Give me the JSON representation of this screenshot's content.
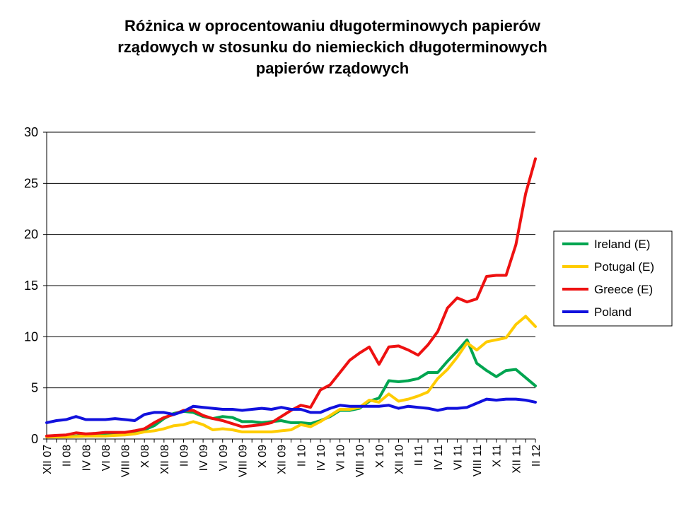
{
  "chart_data": {
    "type": "line",
    "title_lines": [
      "Różnica w oprocentowaniu długoterminowych papierów",
      "rządowych w stosunku do niemieckich długoterminowych",
      "papierów rządowych"
    ],
    "ylim": [
      0,
      30
    ],
    "y_ticks": [
      "0",
      "5",
      "10",
      "15",
      "20",
      "25",
      "30"
    ],
    "y_tick_values": [
      0,
      5,
      10,
      15,
      20,
      25,
      30
    ],
    "grid": true,
    "legend_position": "right",
    "x_tick_labels": [
      "XII 07",
      "II 08",
      "IV 08",
      "VI 08",
      "VIII 08",
      "X 08",
      "XII 08",
      "II 09",
      "IV 09",
      "VI 09",
      "VIII 09",
      "X 09",
      "XII 09",
      "II 10",
      "IV 10",
      "VI 10",
      "VIII 10",
      "X 10",
      "XII 10",
      "II 11",
      "IV 11",
      "VI 11",
      "VIII 11",
      "X 11",
      "XII 11",
      "II 12"
    ],
    "series": [
      {
        "name": "Ireland (E)",
        "color": "#00a550",
        "values": [
          0.3,
          0.2,
          0.25,
          0.3,
          0.35,
          0.35,
          0.4,
          0.4,
          0.5,
          0.7,
          0.9,
          1.3,
          2.0,
          2.5,
          2.7,
          2.6,
          2.2,
          2.0,
          2.2,
          2.1,
          1.7,
          1.7,
          1.6,
          1.7,
          1.8,
          1.6,
          1.6,
          1.5,
          1.8,
          2.2,
          2.8,
          2.8,
          3.0,
          3.7,
          4.0,
          5.7,
          5.6,
          5.7,
          5.9,
          6.5,
          6.5,
          7.6,
          8.6,
          9.7,
          7.4,
          6.7,
          6.1,
          6.7,
          6.8,
          6.0,
          5.2
        ]
      },
      {
        "name": "Potugal (E)",
        "color": "#ffcc00",
        "values": [
          0.2,
          0.2,
          0.2,
          0.25,
          0.3,
          0.3,
          0.3,
          0.35,
          0.4,
          0.5,
          0.7,
          0.8,
          1.0,
          1.3,
          1.4,
          1.7,
          1.4,
          0.9,
          1.0,
          0.9,
          0.7,
          0.7,
          0.7,
          0.7,
          0.8,
          0.9,
          1.4,
          1.2,
          1.7,
          2.3,
          2.9,
          2.9,
          3.1,
          3.8,
          3.6,
          4.4,
          3.7,
          3.9,
          4.2,
          4.6,
          5.9,
          6.8,
          8.0,
          9.4,
          8.7,
          9.5,
          9.7,
          9.9,
          11.2,
          12.0,
          11.0
        ]
      },
      {
        "name": "Greece (E)",
        "color": "#ee1111",
        "values": [
          0.3,
          0.35,
          0.4,
          0.6,
          0.5,
          0.55,
          0.65,
          0.65,
          0.65,
          0.8,
          1.0,
          1.6,
          2.1,
          2.4,
          2.8,
          2.8,
          2.3,
          2.0,
          1.8,
          1.5,
          1.2,
          1.3,
          1.4,
          1.6,
          2.2,
          2.8,
          3.3,
          3.1,
          4.8,
          5.3,
          6.5,
          7.7,
          8.4,
          9.0,
          7.3,
          9.0,
          9.1,
          8.7,
          8.2,
          9.2,
          10.5,
          12.8,
          13.8,
          13.4,
          13.7,
          15.9,
          16.0,
          16.0,
          19.0,
          24.0,
          27.4
        ]
      },
      {
        "name": "Poland",
        "color": "#1111dd",
        "values": [
          1.6,
          1.8,
          1.9,
          2.2,
          1.9,
          1.9,
          1.9,
          2.0,
          1.9,
          1.8,
          2.4,
          2.6,
          2.6,
          2.4,
          2.7,
          3.2,
          3.1,
          3.0,
          2.9,
          2.9,
          2.8,
          2.9,
          3.0,
          2.9,
          3.1,
          2.9,
          2.9,
          2.6,
          2.6,
          3.0,
          3.3,
          3.2,
          3.2,
          3.2,
          3.2,
          3.3,
          3.0,
          3.2,
          3.1,
          3.0,
          2.8,
          3.0,
          3.0,
          3.1,
          3.5,
          3.9,
          3.8,
          3.9,
          3.9,
          3.8,
          3.6
        ]
      }
    ]
  }
}
